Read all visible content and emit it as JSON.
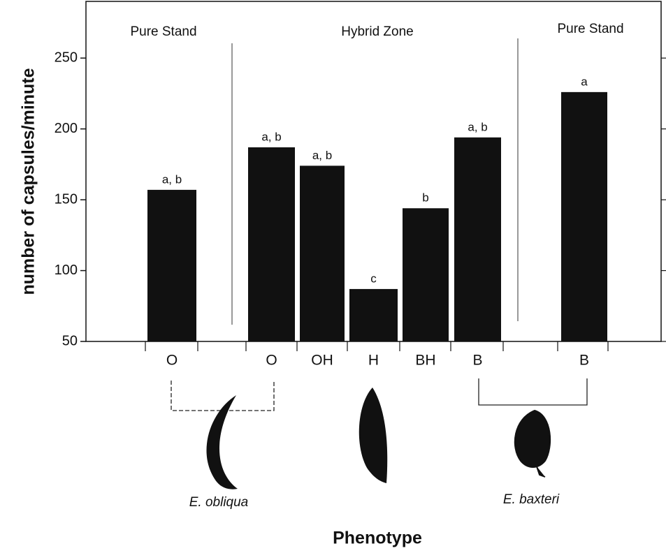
{
  "chart_data": {
    "type": "bar",
    "sections": [
      "Pure Stand",
      "Hybrid Zone",
      "Pure Stand"
    ],
    "categories": [
      "O",
      "O",
      "OH",
      "H",
      "BH",
      "B",
      "B"
    ],
    "values": [
      157,
      187,
      174,
      87,
      144,
      194,
      226
    ],
    "annotations": [
      "a, b",
      "a, b",
      "a, b",
      "c",
      "b",
      "a, b",
      "a"
    ],
    "color": "#111111",
    "ylim": [
      50,
      290
    ],
    "yticks": [
      50,
      100,
      150,
      200,
      250
    ],
    "ylabel": "number of capsules/minute",
    "xlabel": "Phenotype",
    "species": [
      "E. obliqua",
      "E. baxteri"
    ]
  }
}
